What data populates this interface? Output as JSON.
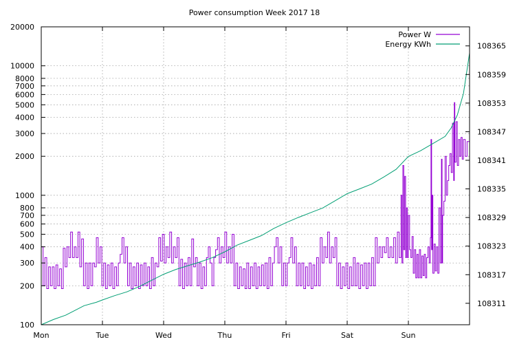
{
  "chart_data": {
    "type": "line",
    "title": "Power consumption Week 2017 18",
    "xlabel": "",
    "ylabel": "",
    "x_categories": [
      "Mon",
      "Tue",
      "Wed",
      "Thu",
      "Fri",
      "Sat",
      "Sun"
    ],
    "x_range_days": [
      0,
      7
    ],
    "y_left": {
      "scale": "log",
      "range": [
        100,
        20000
      ],
      "ticks": [
        100,
        200,
        300,
        400,
        500,
        600,
        700,
        800,
        1000,
        2000,
        3000,
        4000,
        5000,
        6000,
        7000,
        8000,
        10000,
        20000
      ]
    },
    "y_right": {
      "scale": "linear",
      "range": [
        108306.5,
        108369
      ],
      "ticks": [
        108311,
        108317,
        108323,
        108329,
        108335,
        108341,
        108347,
        108353,
        108359,
        108365
      ]
    },
    "grid": true,
    "legend_position": "top-right",
    "colors": {
      "power": "#9400d3",
      "energy": "#009e73"
    },
    "series": [
      {
        "name": "Power W",
        "axis": "left",
        "color": "#9400d3",
        "points": [
          [
            0.0,
            400
          ],
          [
            0.03,
            200
          ],
          [
            0.06,
            330
          ],
          [
            0.09,
            190
          ],
          [
            0.12,
            280
          ],
          [
            0.15,
            200
          ],
          [
            0.18,
            280
          ],
          [
            0.21,
            190
          ],
          [
            0.24,
            290
          ],
          [
            0.27,
            200
          ],
          [
            0.3,
            270
          ],
          [
            0.33,
            190
          ],
          [
            0.36,
            390
          ],
          [
            0.39,
            280
          ],
          [
            0.42,
            400
          ],
          [
            0.45,
            330
          ],
          [
            0.48,
            520
          ],
          [
            0.51,
            330
          ],
          [
            0.54,
            400
          ],
          [
            0.57,
            330
          ],
          [
            0.6,
            520
          ],
          [
            0.63,
            280
          ],
          [
            0.66,
            460
          ],
          [
            0.69,
            200
          ],
          [
            0.72,
            300
          ],
          [
            0.75,
            190
          ],
          [
            0.78,
            300
          ],
          [
            0.81,
            200
          ],
          [
            0.84,
            300
          ],
          [
            0.87,
            280
          ],
          [
            0.9,
            470
          ],
          [
            0.93,
            300
          ],
          [
            0.96,
            400
          ],
          [
            0.99,
            200
          ],
          [
            1.02,
            300
          ],
          [
            1.05,
            190
          ],
          [
            1.08,
            290
          ],
          [
            1.11,
            200
          ],
          [
            1.14,
            300
          ],
          [
            1.17,
            190
          ],
          [
            1.2,
            280
          ],
          [
            1.23,
            200
          ],
          [
            1.26,
            300
          ],
          [
            1.29,
            350
          ],
          [
            1.32,
            470
          ],
          [
            1.35,
            300
          ],
          [
            1.38,
            400
          ],
          [
            1.41,
            200
          ],
          [
            1.44,
            300
          ],
          [
            1.47,
            190
          ],
          [
            1.5,
            280
          ],
          [
            1.53,
            200
          ],
          [
            1.56,
            300
          ],
          [
            1.59,
            190
          ],
          [
            1.62,
            290
          ],
          [
            1.65,
            200
          ],
          [
            1.68,
            300
          ],
          [
            1.71,
            200
          ],
          [
            1.74,
            280
          ],
          [
            1.77,
            190
          ],
          [
            1.8,
            330
          ],
          [
            1.83,
            200
          ],
          [
            1.86,
            300
          ],
          [
            1.89,
            280
          ],
          [
            1.92,
            470
          ],
          [
            1.95,
            310
          ],
          [
            1.98,
            500
          ],
          [
            2.01,
            300
          ],
          [
            2.04,
            400
          ],
          [
            2.07,
            330
          ],
          [
            2.1,
            520
          ],
          [
            2.13,
            300
          ],
          [
            2.16,
            400
          ],
          [
            2.19,
            330
          ],
          [
            2.22,
            470
          ],
          [
            2.25,
            200
          ],
          [
            2.28,
            320
          ],
          [
            2.31,
            190
          ],
          [
            2.34,
            300
          ],
          [
            2.37,
            200
          ],
          [
            2.4,
            330
          ],
          [
            2.43,
            200
          ],
          [
            2.46,
            460
          ],
          [
            2.49,
            280
          ],
          [
            2.52,
            330
          ],
          [
            2.55,
            200
          ],
          [
            2.58,
            300
          ],
          [
            2.61,
            190
          ],
          [
            2.64,
            280
          ],
          [
            2.67,
            200
          ],
          [
            2.7,
            330
          ],
          [
            2.73,
            400
          ],
          [
            2.76,
            300
          ],
          [
            2.79,
            200
          ],
          [
            2.82,
            330
          ],
          [
            2.85,
            380
          ],
          [
            2.88,
            470
          ],
          [
            2.91,
            300
          ],
          [
            2.94,
            400
          ],
          [
            2.97,
            330
          ],
          [
            3.0,
            520
          ],
          [
            3.03,
            300
          ],
          [
            3.06,
            400
          ],
          [
            3.09,
            300
          ],
          [
            3.12,
            500
          ],
          [
            3.15,
            200
          ],
          [
            3.18,
            300
          ],
          [
            3.21,
            190
          ],
          [
            3.24,
            280
          ],
          [
            3.27,
            200
          ],
          [
            3.3,
            270
          ],
          [
            3.33,
            190
          ],
          [
            3.36,
            300
          ],
          [
            3.39,
            190
          ],
          [
            3.42,
            280
          ],
          [
            3.45,
            200
          ],
          [
            3.48,
            300
          ],
          [
            3.51,
            190
          ],
          [
            3.54,
            280
          ],
          [
            3.57,
            200
          ],
          [
            3.6,
            290
          ],
          [
            3.63,
            200
          ],
          [
            3.66,
            300
          ],
          [
            3.69,
            190
          ],
          [
            3.72,
            330
          ],
          [
            3.75,
            200
          ],
          [
            3.78,
            300
          ],
          [
            3.81,
            400
          ],
          [
            3.84,
            470
          ],
          [
            3.87,
            300
          ],
          [
            3.9,
            400
          ],
          [
            3.93,
            200
          ],
          [
            3.96,
            300
          ],
          [
            3.99,
            200
          ],
          [
            4.02,
            300
          ],
          [
            4.05,
            330
          ],
          [
            4.08,
            470
          ],
          [
            4.11,
            300
          ],
          [
            4.14,
            400
          ],
          [
            4.17,
            200
          ],
          [
            4.2,
            300
          ],
          [
            4.23,
            200
          ],
          [
            4.26,
            300
          ],
          [
            4.29,
            190
          ],
          [
            4.32,
            280
          ],
          [
            4.35,
            200
          ],
          [
            4.38,
            300
          ],
          [
            4.41,
            190
          ],
          [
            4.44,
            290
          ],
          [
            4.47,
            200
          ],
          [
            4.5,
            330
          ],
          [
            4.53,
            200
          ],
          [
            4.56,
            470
          ],
          [
            4.59,
            300
          ],
          [
            4.62,
            400
          ],
          [
            4.65,
            330
          ],
          [
            4.68,
            520
          ],
          [
            4.71,
            300
          ],
          [
            4.74,
            400
          ],
          [
            4.77,
            330
          ],
          [
            4.8,
            470
          ],
          [
            4.83,
            200
          ],
          [
            4.86,
            300
          ],
          [
            4.89,
            190
          ],
          [
            4.92,
            280
          ],
          [
            4.95,
            200
          ],
          [
            4.98,
            300
          ],
          [
            5.01,
            190
          ],
          [
            5.04,
            280
          ],
          [
            5.07,
            200
          ],
          [
            5.1,
            330
          ],
          [
            5.13,
            200
          ],
          [
            5.16,
            300
          ],
          [
            5.19,
            190
          ],
          [
            5.22,
            290
          ],
          [
            5.25,
            200
          ],
          [
            5.28,
            300
          ],
          [
            5.31,
            190
          ],
          [
            5.34,
            300
          ],
          [
            5.37,
            200
          ],
          [
            5.4,
            330
          ],
          [
            5.43,
            200
          ],
          [
            5.46,
            470
          ],
          [
            5.49,
            300
          ],
          [
            5.52,
            400
          ],
          [
            5.55,
            330
          ],
          [
            5.58,
            400
          ],
          [
            5.61,
            360
          ],
          [
            5.64,
            470
          ],
          [
            5.67,
            330
          ],
          [
            5.7,
            400
          ],
          [
            5.73,
            330
          ],
          [
            5.76,
            470
          ],
          [
            5.79,
            300
          ],
          [
            5.82,
            520
          ],
          [
            5.85,
            330
          ],
          [
            5.88,
            1000
          ],
          [
            5.895,
            300
          ],
          [
            5.91,
            1700
          ],
          [
            5.925,
            380
          ],
          [
            5.94,
            1400
          ],
          [
            5.955,
            330
          ],
          [
            5.97,
            800
          ],
          [
            5.985,
            330
          ],
          [
            6.0,
            700
          ],
          [
            6.02,
            380
          ],
          [
            6.04,
            330
          ],
          [
            6.06,
            480
          ],
          [
            6.08,
            250
          ],
          [
            6.1,
            380
          ],
          [
            6.12,
            230
          ],
          [
            6.14,
            350
          ],
          [
            6.16,
            230
          ],
          [
            6.18,
            380
          ],
          [
            6.2,
            230
          ],
          [
            6.22,
            340
          ],
          [
            6.24,
            240
          ],
          [
            6.26,
            350
          ],
          [
            6.28,
            230
          ],
          [
            6.3,
            330
          ],
          [
            6.32,
            400
          ],
          [
            6.34,
            300
          ],
          [
            6.36,
            470
          ],
          [
            6.37,
            2700
          ],
          [
            6.38,
            380
          ],
          [
            6.39,
            1000
          ],
          [
            6.4,
            250
          ],
          [
            6.42,
            420
          ],
          [
            6.44,
            260
          ],
          [
            6.46,
            400
          ],
          [
            6.48,
            250
          ],
          [
            6.5,
            800
          ],
          [
            6.52,
            300
          ],
          [
            6.54,
            1900
          ],
          [
            6.55,
            300
          ],
          [
            6.56,
            700
          ],
          [
            6.58,
            900
          ],
          [
            6.6,
            2000
          ],
          [
            6.62,
            1000
          ],
          [
            6.64,
            1300
          ],
          [
            6.66,
            1700
          ],
          [
            6.68,
            2100
          ],
          [
            6.7,
            1500
          ],
          [
            6.72,
            3600
          ],
          [
            6.74,
            1300
          ],
          [
            6.75,
            5200
          ],
          [
            6.76,
            1800
          ],
          [
            6.78,
            3700
          ],
          [
            6.8,
            1700
          ],
          [
            6.82,
            2700
          ],
          [
            6.84,
            2000
          ],
          [
            6.86,
            2800
          ],
          [
            6.88,
            1900
          ],
          [
            6.9,
            2700
          ],
          [
            6.93,
            2000
          ],
          [
            6.96,
            2600
          ],
          [
            7.0,
            1900
          ]
        ]
      },
      {
        "name": "Energy KWh",
        "axis": "right",
        "color": "#009e73",
        "points": [
          [
            0.0,
            108306.5
          ],
          [
            0.2,
            108307.6
          ],
          [
            0.4,
            108308.5
          ],
          [
            0.55,
            108309.5
          ],
          [
            0.7,
            108310.5
          ],
          [
            0.9,
            108311.2
          ],
          [
            1.0,
            108311.7
          ],
          [
            1.2,
            108312.6
          ],
          [
            1.4,
            108313.4
          ],
          [
            1.6,
            108314.5
          ],
          [
            1.8,
            108315.8
          ],
          [
            2.0,
            108317.1
          ],
          [
            2.2,
            108318.1
          ],
          [
            2.4,
            108318.9
          ],
          [
            2.6,
            108319.7
          ],
          [
            2.8,
            108320.6
          ],
          [
            3.0,
            108321.8
          ],
          [
            3.2,
            108323.2
          ],
          [
            3.4,
            108324.2
          ],
          [
            3.6,
            108325.2
          ],
          [
            3.8,
            108326.7
          ],
          [
            4.0,
            108327.9
          ],
          [
            4.2,
            108329.0
          ],
          [
            4.4,
            108330.0
          ],
          [
            4.6,
            108331.0
          ],
          [
            4.8,
            108332.5
          ],
          [
            5.0,
            108334.0
          ],
          [
            5.2,
            108335.0
          ],
          [
            5.4,
            108336.0
          ],
          [
            5.6,
            108337.5
          ],
          [
            5.8,
            108339.1
          ],
          [
            6.0,
            108341.8
          ],
          [
            6.2,
            108343.0
          ],
          [
            6.4,
            108344.5
          ],
          [
            6.6,
            108346.0
          ],
          [
            6.7,
            108347.8
          ],
          [
            6.8,
            108350.5
          ],
          [
            6.9,
            108355.0
          ],
          [
            7.0,
            108363.5
          ]
        ]
      }
    ]
  }
}
